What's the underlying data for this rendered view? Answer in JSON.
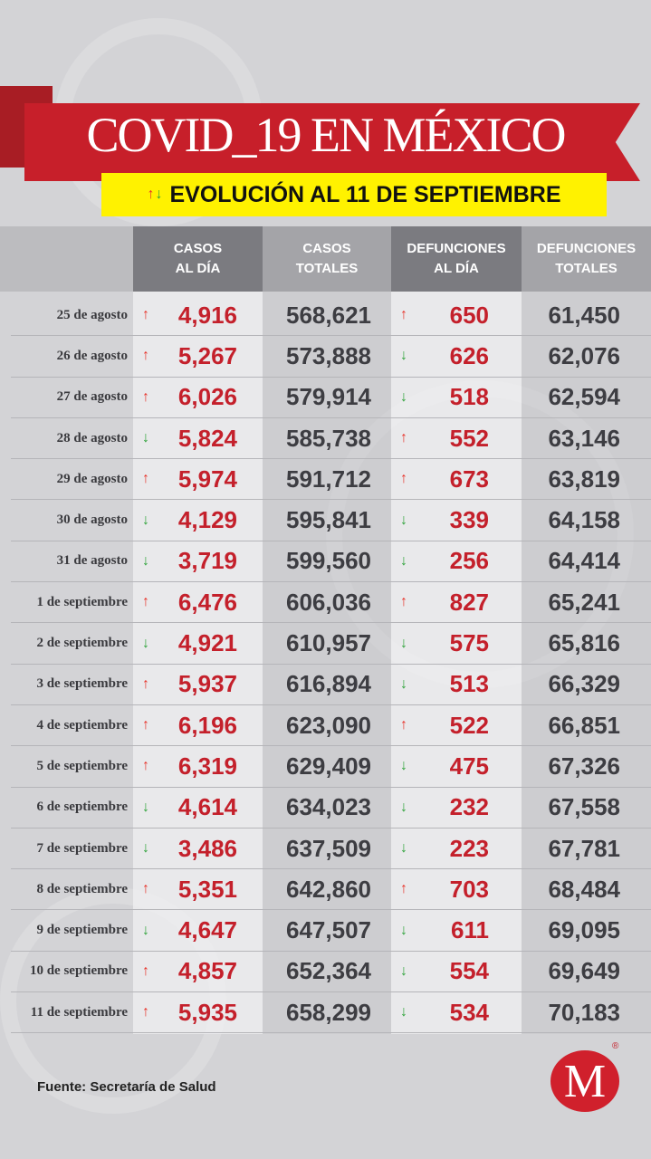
{
  "title": "COVID_19 EN MÉXICO",
  "subtitle": "EVOLUCIÓN AL 11 DE SEPTIEMBRE",
  "colors": {
    "red": "#c71f2a",
    "yellow": "#fff200",
    "up_arrow": "#e8332a",
    "down_arrow": "#2fa33a"
  },
  "headers": [
    "",
    "CASOS\nAL DÍA",
    "CASOS\nTOTALES",
    "DEFUNCIONES\nAL DÍA",
    "DEFUNCIONES\nTOTALES"
  ],
  "rows": [
    {
      "date": "25 de agosto",
      "casos_dia": "4,916",
      "casos_trend": "up",
      "casos_totales": "568,621",
      "def_dia": "650",
      "def_trend": "up",
      "def_totales": "61,450"
    },
    {
      "date": "26 de agosto",
      "casos_dia": "5,267",
      "casos_trend": "up",
      "casos_totales": "573,888",
      "def_dia": "626",
      "def_trend": "down",
      "def_totales": "62,076"
    },
    {
      "date": "27 de agosto",
      "casos_dia": "6,026",
      "casos_trend": "up",
      "casos_totales": "579,914",
      "def_dia": "518",
      "def_trend": "down",
      "def_totales": "62,594"
    },
    {
      "date": "28 de agosto",
      "casos_dia": "5,824",
      "casos_trend": "down",
      "casos_totales": "585,738",
      "def_dia": "552",
      "def_trend": "up",
      "def_totales": "63,146"
    },
    {
      "date": "29 de agosto",
      "casos_dia": "5,974",
      "casos_trend": "up",
      "casos_totales": "591,712",
      "def_dia": "673",
      "def_trend": "up",
      "def_totales": "63,819"
    },
    {
      "date": "30 de agosto",
      "casos_dia": "4,129",
      "casos_trend": "down",
      "casos_totales": "595,841",
      "def_dia": "339",
      "def_trend": "down",
      "def_totales": "64,158"
    },
    {
      "date": "31 de agosto",
      "casos_dia": "3,719",
      "casos_trend": "down",
      "casos_totales": "599,560",
      "def_dia": "256",
      "def_trend": "down",
      "def_totales": "64,414"
    },
    {
      "date": "1 de septiembre",
      "casos_dia": "6,476",
      "casos_trend": "up",
      "casos_totales": "606,036",
      "def_dia": "827",
      "def_trend": "up",
      "def_totales": "65,241"
    },
    {
      "date": "2 de septiembre",
      "casos_dia": "4,921",
      "casos_trend": "down",
      "casos_totales": "610,957",
      "def_dia": "575",
      "def_trend": "down",
      "def_totales": "65,816"
    },
    {
      "date": "3 de septiembre",
      "casos_dia": "5,937",
      "casos_trend": "up",
      "casos_totales": "616,894",
      "def_dia": "513",
      "def_trend": "down",
      "def_totales": "66,329"
    },
    {
      "date": "4 de septiembre",
      "casos_dia": "6,196",
      "casos_trend": "up",
      "casos_totales": "623,090",
      "def_dia": "522",
      "def_trend": "up",
      "def_totales": "66,851"
    },
    {
      "date": "5 de septiembre",
      "casos_dia": "6,319",
      "casos_trend": "up",
      "casos_totales": "629,409",
      "def_dia": "475",
      "def_trend": "down",
      "def_totales": "67,326"
    },
    {
      "date": "6 de septiembre",
      "casos_dia": "4,614",
      "casos_trend": "down",
      "casos_totales": "634,023",
      "def_dia": "232",
      "def_trend": "down",
      "def_totales": "67,558"
    },
    {
      "date": "7 de septiembre",
      "casos_dia": "3,486",
      "casos_trend": "down",
      "casos_totales": "637,509",
      "def_dia": "223",
      "def_trend": "down",
      "def_totales": "67,781"
    },
    {
      "date": "8 de septiembre",
      "casos_dia": "5,351",
      "casos_trend": "up",
      "casos_totales": "642,860",
      "def_dia": "703",
      "def_trend": "up",
      "def_totales": "68,484"
    },
    {
      "date": "9 de septiembre",
      "casos_dia": "4,647",
      "casos_trend": "down",
      "casos_totales": "647,507",
      "def_dia": "611",
      "def_trend": "down",
      "def_totales": "69,095"
    },
    {
      "date": "10 de septiembre",
      "casos_dia": "4,857",
      "casos_trend": "up",
      "casos_totales": "652,364",
      "def_dia": "554",
      "def_trend": "down",
      "def_totales": "69,649"
    },
    {
      "date": "11 de septiembre",
      "casos_dia": "5,935",
      "casos_trend": "up",
      "casos_totales": "658,299",
      "def_dia": "534",
      "def_trend": "down",
      "def_totales": "70,183"
    }
  ],
  "source": "Fuente: Secretaría de Salud",
  "logo": {
    "letter": "M",
    "mark": "®"
  }
}
